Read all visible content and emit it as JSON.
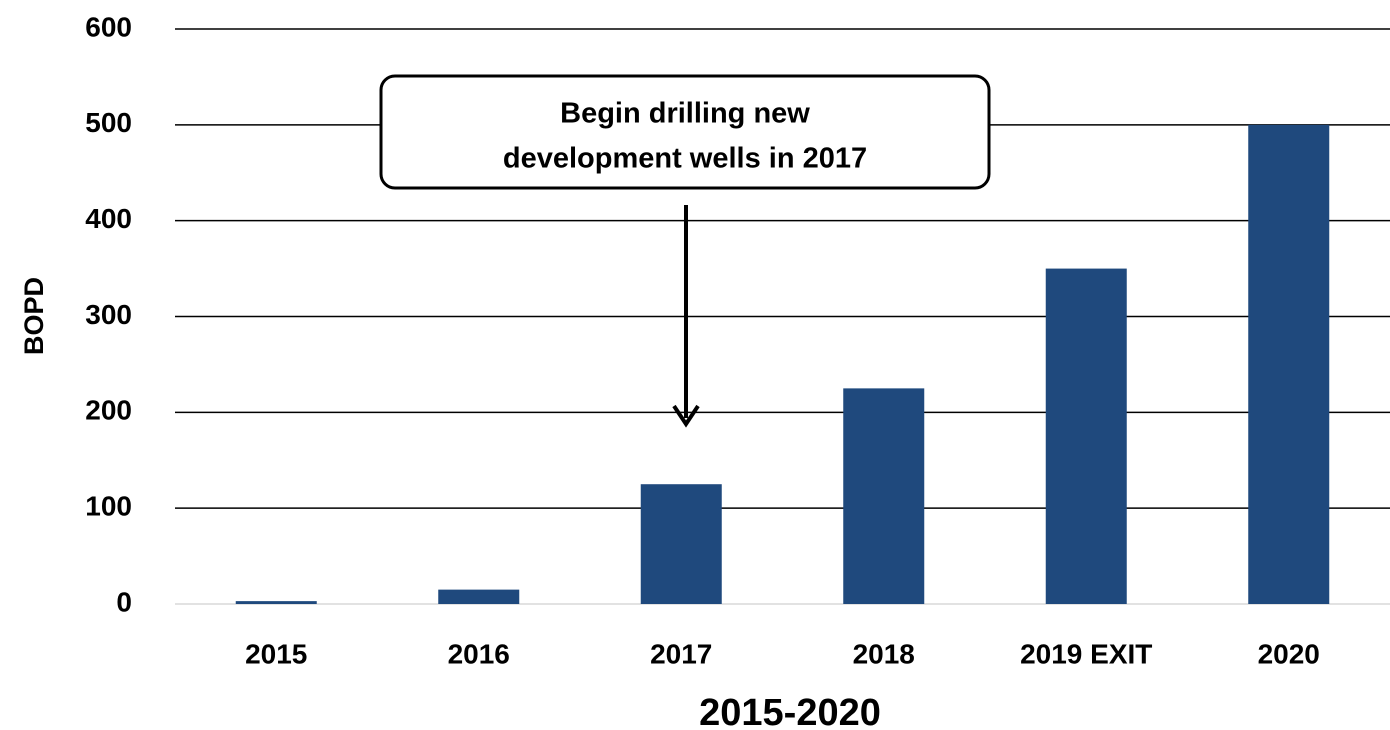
{
  "chart_data": {
    "type": "bar",
    "x_label": "2015-2020",
    "y_label": "BOPD",
    "categories": [
      "2015",
      "2016",
      "2017",
      "2018",
      "2019 EXIT",
      "2020"
    ],
    "values": [
      3,
      15,
      125,
      225,
      350,
      500
    ],
    "color": "#1f497d",
    "ylim": [
      0,
      600
    ],
    "yticks": [
      0,
      100,
      200,
      300,
      400,
      500,
      600
    ],
    "grid": true,
    "annotation": {
      "lines": [
        "Begin drilling new",
        "development wells in 2017"
      ],
      "points_to": "2017"
    }
  }
}
